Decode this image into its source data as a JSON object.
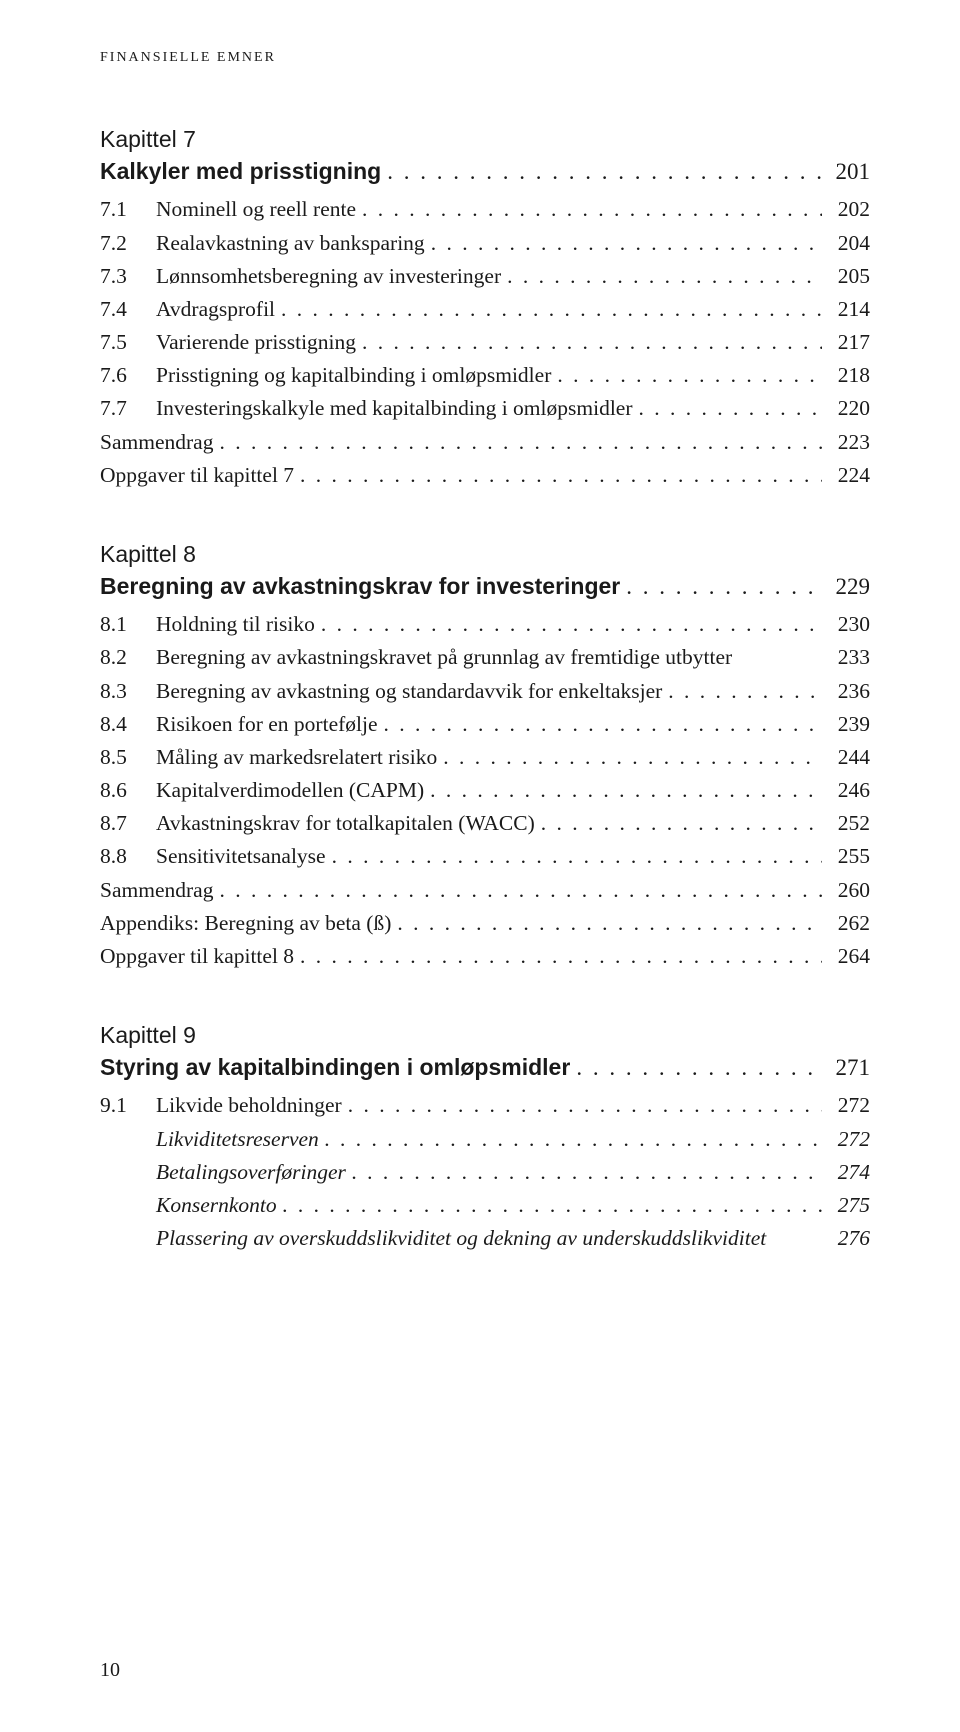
{
  "running_header": "FINANSIELLE EMNER",
  "page_number": "10",
  "dots_fill": ". . . . . . . . . . . . . . . . . . . . . . . . . . . . . . . . . . . . . . . . . . . . . . . . . . . . . . . . . . . . . . . . . . . . . . . . . . . . . .",
  "chapters": [
    {
      "label": "Kapittel 7",
      "title": "Kalkyler med prisstigning",
      "title_page": "201",
      "entries": [
        {
          "num": "7.1",
          "text": "Nominell og reell rente",
          "page": "202",
          "dots": true,
          "italic": false
        },
        {
          "num": "7.2",
          "text": "Realavkastning av banksparing",
          "page": "204",
          "dots": true,
          "italic": false
        },
        {
          "num": "7.3",
          "text": "Lønnsomhetsberegning av investeringer",
          "page": "205",
          "dots": true,
          "italic": false
        },
        {
          "num": "7.4",
          "text": "Avdragsprofil",
          "page": "214",
          "dots": true,
          "italic": false
        },
        {
          "num": "7.5",
          "text": "Varierende prisstigning",
          "page": "217",
          "dots": true,
          "italic": false
        },
        {
          "num": "7.6",
          "text": "Prisstigning og kapitalbinding i omløpsmidler",
          "page": "218",
          "dots": true,
          "italic": false
        },
        {
          "num": "7.7",
          "text": "Investeringskalkyle med kapitalbinding i omløpsmidler",
          "page": "220",
          "dots": true,
          "italic": false
        },
        {
          "num": "",
          "text": "Sammendrag",
          "page": "223",
          "dots": true,
          "italic": false
        },
        {
          "num": "",
          "text": "Oppgaver til kapittel 7",
          "page": "224",
          "dots": true,
          "italic": false
        }
      ]
    },
    {
      "label": "Kapittel 8",
      "title": "Beregning av avkastningskrav for investeringer",
      "title_page": "229",
      "entries": [
        {
          "num": "8.1",
          "text": "Holdning til risiko",
          "page": "230",
          "dots": true,
          "italic": false
        },
        {
          "num": "8.2",
          "text": "Beregning av avkastningskravet på grunnlag av fremtidige utbytter",
          "page": "233",
          "dots": false,
          "italic": false
        },
        {
          "num": "8.3",
          "text": "Beregning av avkastning og standardavvik for enkeltaksjer",
          "page": "236",
          "dots": true,
          "italic": false
        },
        {
          "num": "8.4",
          "text": "Risikoen for en portefølje",
          "page": "239",
          "dots": true,
          "italic": false
        },
        {
          "num": "8.5",
          "text": "Måling av markedsrelatert risiko",
          "page": "244",
          "dots": true,
          "italic": false
        },
        {
          "num": "8.6",
          "text": "Kapitalverdimodellen (CAPM)",
          "page": "246",
          "dots": true,
          "italic": false
        },
        {
          "num": "8.7",
          "text": "Avkastningskrav for totalkapitalen (WACC)",
          "page": "252",
          "dots": true,
          "italic": false
        },
        {
          "num": "8.8",
          "text": "Sensitivitetsanalyse",
          "page": "255",
          "dots": true,
          "italic": false
        },
        {
          "num": "",
          "text": "Sammendrag",
          "page": "260",
          "dots": true,
          "italic": false
        },
        {
          "num": "",
          "text": "Appendiks: Beregning av beta (ß)",
          "page": "262",
          "dots": true,
          "italic": false
        },
        {
          "num": "",
          "text": "Oppgaver til kapittel 8",
          "page": "264",
          "dots": true,
          "italic": false
        }
      ]
    },
    {
      "label": "Kapittel 9",
      "title": "Styring av kapitalbindingen i omløpsmidler",
      "title_page": "271",
      "entries": [
        {
          "num": "9.1",
          "text": "Likvide beholdninger",
          "page": "272",
          "dots": true,
          "italic": false
        },
        {
          "num": "",
          "text": "Likviditetsreserven",
          "page": "272",
          "dots": true,
          "italic": true,
          "indent": true
        },
        {
          "num": "",
          "text": "Betalingsoverføringer",
          "page": "274",
          "dots": true,
          "italic": true,
          "indent": true
        },
        {
          "num": "",
          "text": "Konsernkonto",
          "page": "275",
          "dots": true,
          "italic": true,
          "indent": true
        },
        {
          "num": "",
          "text": "Plassering av overskuddslikviditet og dekning av underskuddslikviditet",
          "page": "276",
          "dots": false,
          "italic": true,
          "indent": true
        }
      ]
    }
  ]
}
